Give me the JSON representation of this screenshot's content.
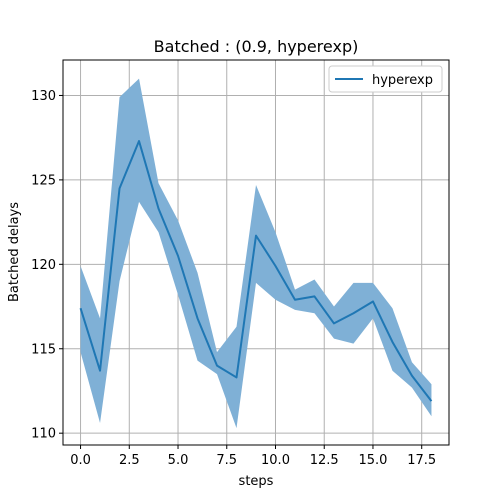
{
  "chart_data": {
    "type": "line",
    "title": "Batched : (0.9, hyperexp)",
    "xlabel": "steps",
    "ylabel": "Batched delays",
    "xlim": [
      -0.9,
      18.9
    ],
    "ylim": [
      109.3,
      132.1
    ],
    "grid": true,
    "legend_position": "top-right",
    "x_ticks": [
      0,
      2.5,
      5,
      7.5,
      10,
      12.5,
      15,
      17.5
    ],
    "x_tick_labels": [
      "0.0",
      "2.5",
      "5.0",
      "7.5",
      "10.0",
      "12.5",
      "15.0",
      "17.5"
    ],
    "y_ticks": [
      110,
      115,
      120,
      125,
      130
    ],
    "y_tick_labels": [
      "110",
      "115",
      "120",
      "125",
      "130"
    ],
    "series": [
      {
        "name": "hyperexp",
        "color": "#1f77b4",
        "band_color": "#7fb0d6",
        "x": [
          0,
          1,
          2,
          3,
          4,
          5,
          6,
          7,
          8,
          9,
          10,
          11,
          12,
          13,
          14,
          15,
          16,
          17,
          18
        ],
        "values": [
          117.4,
          113.7,
          124.5,
          127.3,
          123.3,
          120.5,
          116.8,
          114.0,
          113.3,
          121.7,
          119.9,
          117.9,
          118.1,
          116.5,
          117.1,
          117.8,
          115.4,
          113.4,
          111.9
        ],
        "upper": [
          119.9,
          116.8,
          129.9,
          131.0,
          124.8,
          122.6,
          119.5,
          114.8,
          116.3,
          124.7,
          121.9,
          118.5,
          119.1,
          117.5,
          118.9,
          118.9,
          117.4,
          114.2,
          112.9
        ],
        "lower": [
          114.8,
          110.6,
          119.0,
          123.7,
          121.9,
          118.2,
          114.3,
          113.5,
          110.3,
          118.9,
          117.9,
          117.3,
          117.1,
          115.6,
          115.3,
          116.8,
          113.7,
          112.7,
          111.0
        ]
      }
    ]
  }
}
